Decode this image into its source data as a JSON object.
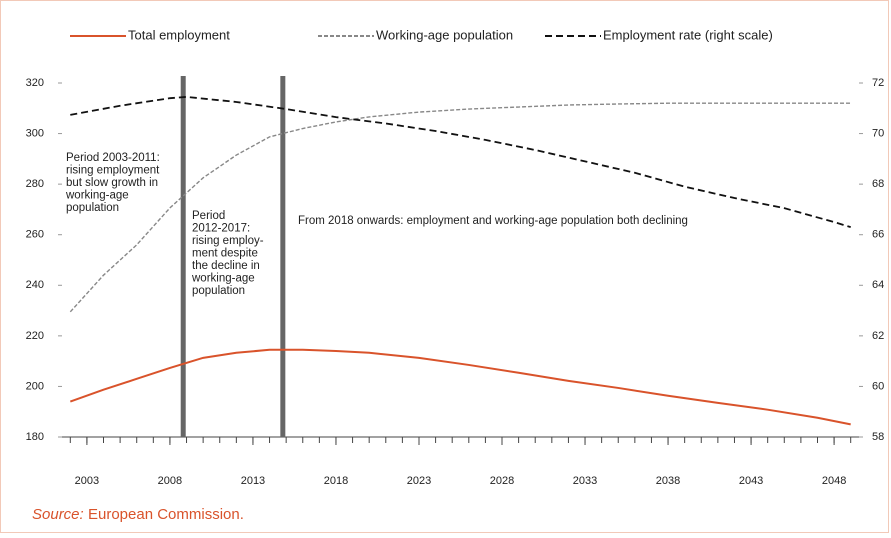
{
  "chart_data": {
    "type": "line",
    "source_label": "Source:",
    "source": "European Commission.",
    "xlim": [
      2001.5,
      2049.5
    ],
    "xticks": [
      2003,
      2008,
      2013,
      2018,
      2023,
      2028,
      2033,
      2038,
      2043,
      2048
    ],
    "ylim": [
      180,
      320
    ],
    "yticks": [
      180,
      200,
      220,
      240,
      260,
      280,
      300,
      320
    ],
    "y2lim": [
      58,
      72
    ],
    "y2ticks": [
      58,
      60,
      62,
      64,
      66,
      68,
      70,
      72
    ],
    "vlines": [
      2008.8,
      2014.8
    ],
    "series": [
      {
        "name": "Total employment",
        "color": "#d9532b",
        "dash": "solid",
        "x": [
          2002,
          2004,
          2006,
          2008,
          2010,
          2012,
          2014,
          2016,
          2018,
          2020,
          2023,
          2026,
          2029,
          2032,
          2035,
          2038,
          2041,
          2044,
          2047,
          2049
        ],
        "values": [
          194,
          198.7,
          203,
          207.3,
          211.3,
          213.3,
          214.5,
          214.5,
          214,
          213.3,
          211.3,
          208.5,
          205.4,
          202.2,
          199.4,
          196.3,
          193.5,
          190.8,
          187.6,
          185
        ]
      },
      {
        "name": "Working-age population",
        "color": "#888888",
        "dash": "short",
        "x": [
          2002,
          2004,
          2006,
          2008,
          2010,
          2012,
          2014,
          2016,
          2018,
          2020,
          2023,
          2026,
          2029,
          2032,
          2035,
          2038,
          2041,
          2044,
          2047,
          2049
        ],
        "values": [
          229.5,
          244,
          256,
          270.6,
          282.5,
          291.5,
          298.7,
          302,
          304.6,
          306.6,
          308.5,
          309.7,
          310.5,
          311.3,
          311.7,
          312,
          312,
          312,
          312,
          312
        ]
      },
      {
        "name": "Employment rate (right scale)",
        "color": "#111111",
        "dash": "long",
        "axis": "y2",
        "x": [
          2002,
          2005,
          2008,
          2009,
          2012,
          2015,
          2018,
          2021,
          2024,
          2027,
          2030,
          2033,
          2036,
          2039,
          2042,
          2045,
          2048,
          2049
        ],
        "values": [
          70.74,
          71.1,
          71.4,
          71.45,
          71.25,
          70.97,
          70.65,
          70.4,
          70.1,
          69.75,
          69.35,
          68.9,
          68.45,
          67.9,
          67.45,
          67.05,
          66.5,
          66.3
        ]
      }
    ],
    "annotations": [
      {
        "lines": [
          "Period 2003-2011:",
          "rising employment",
          "but slow growth in",
          "working-age",
          "population"
        ]
      },
      {
        "lines": [
          "Period",
          "2012-2017:",
          "rising employ-",
          "ment despite",
          "the decline in",
          "working-age",
          "population"
        ]
      },
      {
        "lines": [
          "From 2018 onwards: employment and working-age population both declining"
        ]
      }
    ]
  }
}
